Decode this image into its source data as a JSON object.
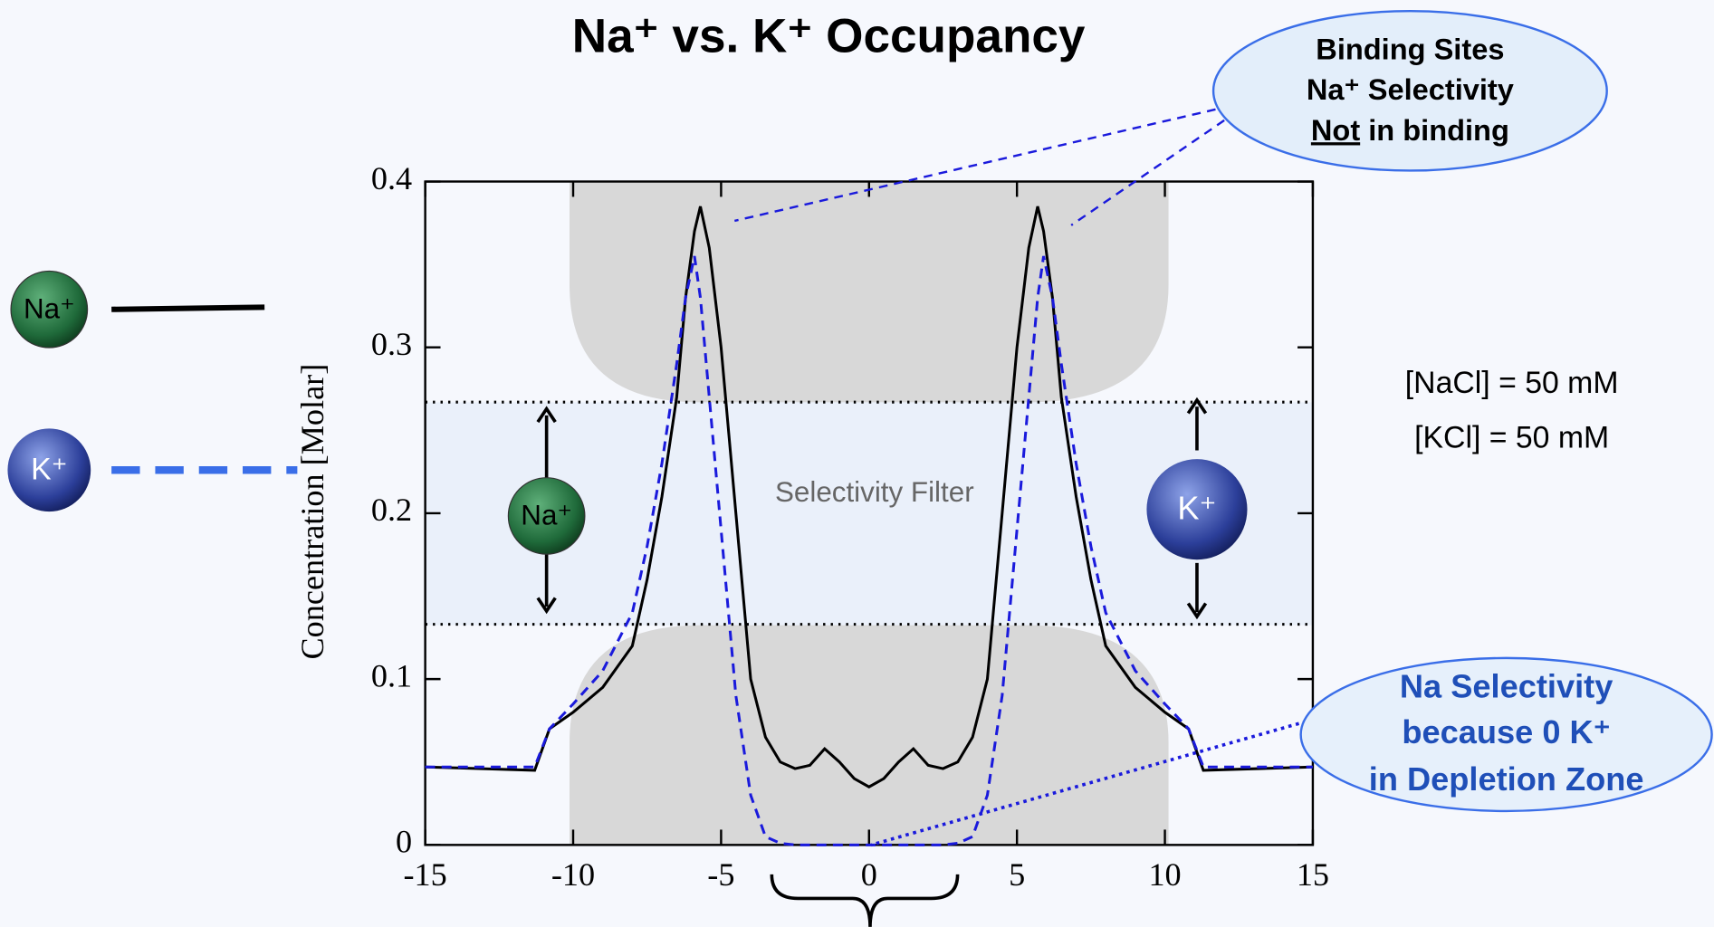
{
  "chart_data": {
    "type": "line",
    "title": "Na⁺ vs. K⁺ Occupancy",
    "y_label": "Concentration [Molar]",
    "x": [
      -15,
      -11.3,
      -10.8,
      -10,
      -9,
      -8,
      -7.5,
      -7,
      -6.5,
      -6.2,
      -5.9,
      -5.7,
      -5.4,
      -5,
      -4.5,
      -4,
      -3.5,
      -3,
      -2.5,
      -2,
      -1.5,
      -1,
      -0.5,
      0,
      0.5,
      1,
      1.5,
      2,
      2.5,
      3,
      3.5,
      4,
      4.5,
      5,
      5.4,
      5.7,
      5.9,
      6.2,
      6.5,
      7,
      7.5,
      8,
      9,
      10,
      10.8,
      11.3,
      15
    ],
    "series": [
      {
        "name": "Na⁺",
        "color": "#000000",
        "style": "solid",
        "values": [
          0.047,
          0.045,
          0.07,
          0.08,
          0.095,
          0.12,
          0.16,
          0.21,
          0.27,
          0.33,
          0.37,
          0.385,
          0.36,
          0.3,
          0.2,
          0.1,
          0.065,
          0.05,
          0.046,
          0.048,
          0.058,
          0.05,
          0.04,
          0.035,
          0.04,
          0.05,
          0.058,
          0.048,
          0.046,
          0.05,
          0.065,
          0.1,
          0.2,
          0.3,
          0.36,
          0.385,
          0.37,
          0.33,
          0.27,
          0.21,
          0.16,
          0.12,
          0.095,
          0.08,
          0.07,
          0.045,
          0.047
        ]
      },
      {
        "name": "K⁺",
        "color": "#1a1adc",
        "style": "dashed",
        "values": [
          0.047,
          0.047,
          0.07,
          0.085,
          0.105,
          0.14,
          0.18,
          0.23,
          0.29,
          0.33,
          0.355,
          0.33,
          0.27,
          0.19,
          0.09,
          0.03,
          0.005,
          0.001,
          0,
          0,
          0,
          0,
          0,
          0,
          0,
          0,
          0,
          0,
          0,
          0.001,
          0.005,
          0.03,
          0.09,
          0.19,
          0.27,
          0.33,
          0.355,
          0.33,
          0.29,
          0.23,
          0.18,
          0.14,
          0.105,
          0.085,
          0.07,
          0.047,
          0.047
        ]
      }
    ],
    "xlim": [
      -15,
      15
    ],
    "ylim": [
      0,
      0.4
    ],
    "xticks": [
      -15,
      -10,
      -5,
      0,
      5,
      10,
      15
    ],
    "yticks": [
      0,
      0.1,
      0.2,
      0.3,
      0.4
    ],
    "reference_lines": [
      0.267,
      0.133
    ],
    "region_label": "Selectivity Filter",
    "conditions": [
      "[NaCl] = 50 mM",
      "[KCl] = 50 mM"
    ],
    "callout_top": {
      "line1": "Binding Sites",
      "line2": "Na⁺ Selectivity",
      "line3_underlined": "Not",
      "line3_rest": "in binding"
    },
    "callout_bottom": [
      "Na Selectivity",
      "because 0 K⁺",
      "in Depletion Zone"
    ]
  }
}
